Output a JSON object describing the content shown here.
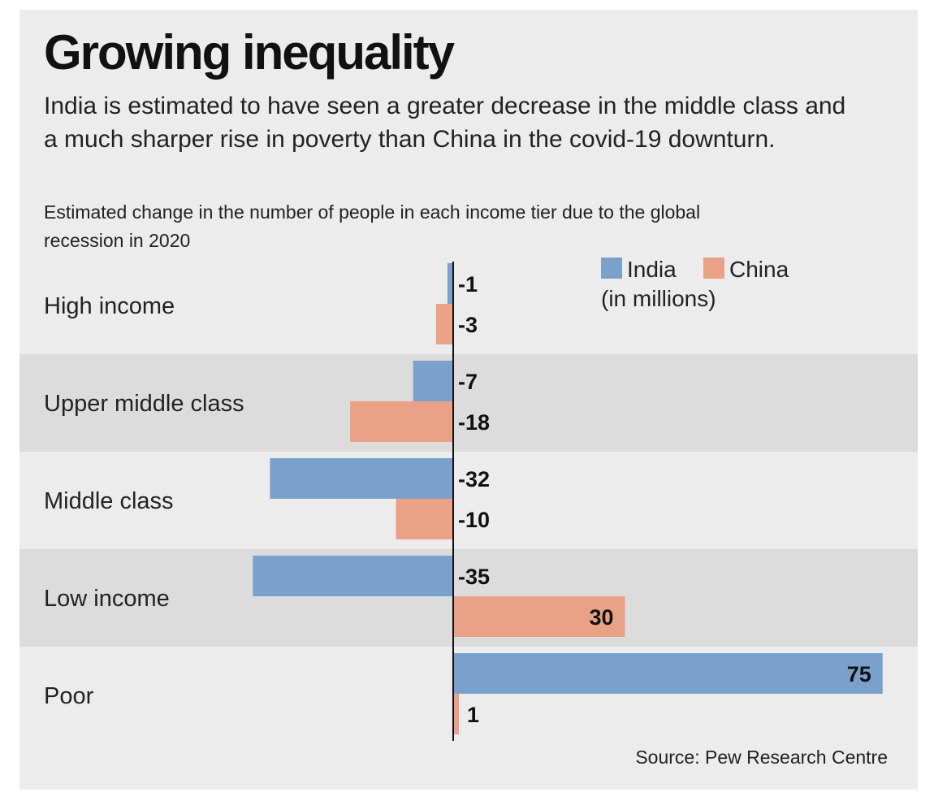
{
  "title": "Growing inequality",
  "subtitle": "India is estimated to have seen a greater decrease in the middle class and a much sharper rise in poverty than China in the covid-19 downturn.",
  "note": "Estimated change in the number of people in each income tier due to the global recession in 2020",
  "source": "Source: Pew Research Centre",
  "colors": {
    "background": "#ececec",
    "band": "#dcdcdc",
    "india": "#7aa1cc",
    "china": "#e9a286"
  },
  "chart_data": {
    "type": "bar",
    "orientation": "horizontal",
    "categories": [
      "High income",
      "Upper middle class",
      "Middle class",
      "Low income",
      "Poor"
    ],
    "series": [
      {
        "name": "India",
        "values": [
          -1,
          -7,
          -32,
          -35,
          75
        ],
        "color": "#7aa1cc"
      },
      {
        "name": "China",
        "values": [
          -3,
          -18,
          -10,
          30,
          1
        ],
        "color": "#e9a286"
      }
    ],
    "value_labels": {
      "India": [
        "-1",
        "-7",
        "-32",
        "-35",
        "75"
      ],
      "China": [
        "-3",
        "-18",
        "-10",
        "30",
        "1"
      ]
    },
    "unit": "(in millions)",
    "xlim": [
      -35,
      75
    ],
    "legend_position": "top-right"
  }
}
